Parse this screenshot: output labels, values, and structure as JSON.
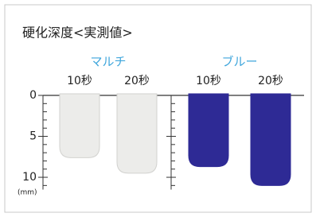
{
  "chart_data": {
    "type": "bar",
    "title": "硬化深度<実測値>",
    "y_unit": "(mm)",
    "categories": [
      "10秒",
      "20秒"
    ],
    "series": [
      {
        "name": "マルチ",
        "color": "#ececea",
        "values": [
          7.6,
          9.5
        ]
      },
      {
        "name": "ブルー",
        "color": "#2e2a95",
        "values": [
          8.7,
          11
        ]
      }
    ],
    "group_label_color": "#3fa6dc",
    "y_inverted": true,
    "ylim": [
      0,
      11.5
    ],
    "yticks": [
      0,
      5,
      10
    ],
    "minor_yticks": [
      1,
      2,
      3,
      4,
      6,
      7,
      8,
      9,
      11
    ]
  }
}
